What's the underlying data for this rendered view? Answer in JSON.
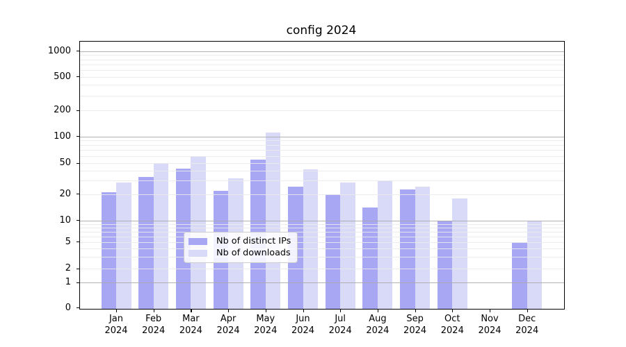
{
  "title": "config 2024",
  "legend": {
    "items": [
      {
        "label": "Nb of distinct IPs",
        "series": "ips"
      },
      {
        "label": "Nb of downloads",
        "series": "downloads"
      }
    ]
  },
  "colors": {
    "ips_bar": "#a7a7f3",
    "downloads_bar": "#d9d9f8",
    "major_grid": "#aaaaaa",
    "minor_grid": "#eaeaea",
    "axis": "#000000",
    "legend_border": "#cccccc"
  },
  "x_axis": {
    "months": [
      "Jan",
      "Feb",
      "Mar",
      "Apr",
      "May",
      "Jun",
      "Jul",
      "Aug",
      "Sep",
      "Oct",
      "Nov",
      "Dec"
    ],
    "year": "2024"
  },
  "y_axis": {
    "tick_values": [
      0,
      1,
      2,
      5,
      10,
      20,
      50,
      100,
      200,
      500,
      1000
    ],
    "major_tick_values": [
      1,
      10,
      100,
      1000
    ],
    "minor_gridline_values": [
      3,
      4,
      6,
      7,
      8,
      9,
      30,
      40,
      60,
      70,
      80,
      90,
      300,
      400,
      600,
      700,
      800,
      900
    ]
  },
  "chart_data": {
    "type": "bar",
    "title": "config 2024",
    "categories": [
      "Jan 2024",
      "Feb 2024",
      "Mar 2024",
      "Apr 2024",
      "May 2024",
      "Jun 2024",
      "Jul 2024",
      "Aug 2024",
      "Sep 2024",
      "Oct 2024",
      "Nov 2024",
      "Dec 2024"
    ],
    "series": [
      {
        "name": "Nb of distinct IPs",
        "values": [
          21,
          33,
          43,
          22,
          55,
          25,
          20,
          14,
          23,
          10,
          0,
          5
        ]
      },
      {
        "name": "Nb of downloads",
        "values": [
          28,
          50,
          60,
          32,
          110,
          42,
          28,
          30,
          25,
          18,
          0,
          10
        ]
      }
    ],
    "xlabel": "",
    "ylabel": "",
    "yscale": "symlog",
    "y_ticks": [
      0,
      1,
      2,
      5,
      10,
      20,
      50,
      100,
      200,
      500,
      1000
    ],
    "ylim": [
      0,
      1290
    ],
    "grid": true,
    "legend_position": "lower center"
  }
}
